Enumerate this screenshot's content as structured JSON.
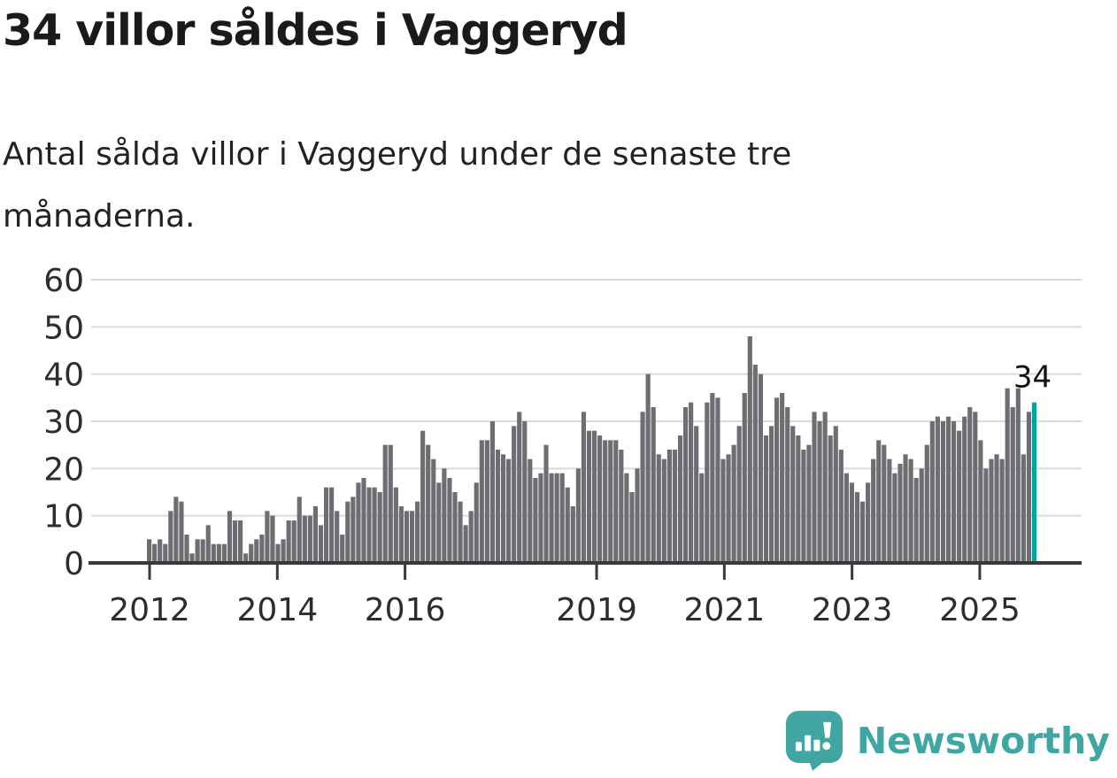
{
  "page": {
    "title": "34 villor såldes i Vaggeryd",
    "subtitle": "Antal sålda villor i Vaggeryd under de senaste tre månaderna."
  },
  "branding": {
    "logo_text": "Newsworthy",
    "logo_icon": "newsworthy-speech-bubble-chart-icon"
  },
  "colors": {
    "bar": "#6d6d72",
    "bar_highlight": "#00a69c",
    "axis": "#3a3a3a",
    "gridline": "#d9d9d9",
    "tick_label": "#2d2d2d",
    "logo_teal": "#3fa6a1",
    "annotation": "#111111"
  },
  "chart_data": {
    "type": "bar",
    "title": "34 villor såldes i Vaggeryd",
    "subtitle": "Antal sålda villor i Vaggeryd under de senaste tre månaderna.",
    "x_unit": "month",
    "x_start": "2012-01",
    "x_end": "2025-10",
    "values": [
      5,
      4,
      5,
      4,
      11,
      14,
      13,
      6,
      2,
      5,
      5,
      8,
      4,
      4,
      4,
      11,
      9,
      9,
      2,
      4,
      5,
      6,
      11,
      10,
      4,
      5,
      9,
      9,
      14,
      10,
      10,
      12,
      8,
      16,
      16,
      11,
      6,
      13,
      14,
      17,
      18,
      16,
      16,
      15,
      25,
      25,
      16,
      12,
      11,
      11,
      13,
      28,
      25,
      22,
      17,
      20,
      18,
      15,
      13,
      8,
      11,
      17,
      26,
      26,
      30,
      24,
      23,
      22,
      29,
      32,
      30,
      22,
      18,
      19,
      25,
      19,
      19,
      19,
      16,
      12,
      20,
      32,
      28,
      28,
      27,
      26,
      26,
      26,
      24,
      19,
      15,
      20,
      32,
      40,
      33,
      23,
      22,
      24,
      24,
      27,
      33,
      34,
      29,
      19,
      34,
      36,
      35,
      22,
      23,
      25,
      29,
      36,
      48,
      42,
      40,
      27,
      29,
      35,
      36,
      33,
      29,
      27,
      24,
      25,
      32,
      30,
      32,
      27,
      29,
      24,
      19,
      17,
      15,
      13,
      17,
      22,
      26,
      25,
      22,
      19,
      21,
      23,
      22,
      18,
      20,
      25,
      30,
      31,
      30,
      31,
      30,
      28,
      31,
      33,
      32,
      26,
      20,
      22,
      23,
      22,
      37,
      33,
      37,
      23,
      32,
      34
    ],
    "highlight_last": {
      "value": 34,
      "label": "34"
    },
    "ylim": [
      0,
      60
    ],
    "y_ticks": [
      0,
      10,
      20,
      30,
      40,
      50,
      60
    ],
    "x_tick_years": [
      2012,
      2014,
      2016,
      2019,
      2021,
      2023,
      2025
    ],
    "grid": "horizontal",
    "legend": "none",
    "annotation": "34"
  }
}
